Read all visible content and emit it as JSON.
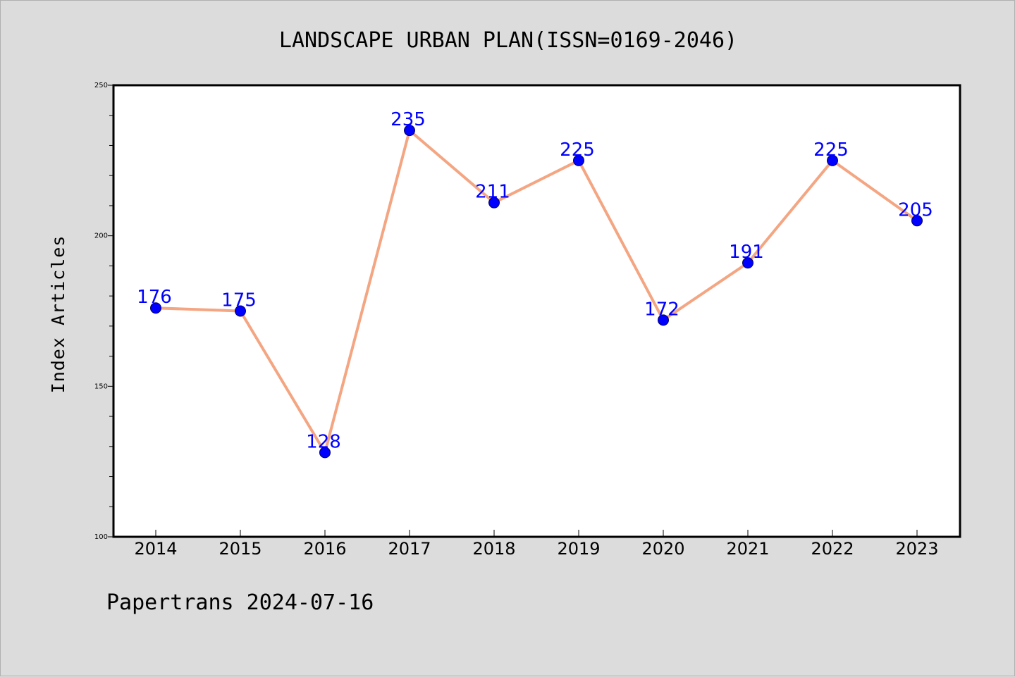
{
  "chart_data": {
    "type": "line",
    "title": "LANDSCAPE URBAN PLAN(ISSN=0169-2046)",
    "xlabel": "",
    "ylabel": "Index Articles",
    "categories": [
      "2014",
      "2015",
      "2016",
      "2017",
      "2018",
      "2019",
      "2020",
      "2021",
      "2022",
      "2023"
    ],
    "series": [
      {
        "values": [
          176,
          175,
          128,
          235,
          211,
          225,
          172,
          191,
          225,
          205
        ]
      }
    ],
    "data_labels": [
      "176",
      "175",
      "128",
      "235",
      "211",
      "225",
      "172",
      "191",
      "225",
      "205"
    ],
    "ylim": [
      100,
      250
    ],
    "yticks": [
      "100",
      "150",
      "200",
      "250"
    ],
    "grid": false,
    "line_color": "#f4a582",
    "marker_color": "#0000ff",
    "label_color": "#0000ff",
    "plot_background": "#ffffff",
    "figure_background": "#dcdcdc"
  },
  "footer": "Papertrans 2024-07-16"
}
